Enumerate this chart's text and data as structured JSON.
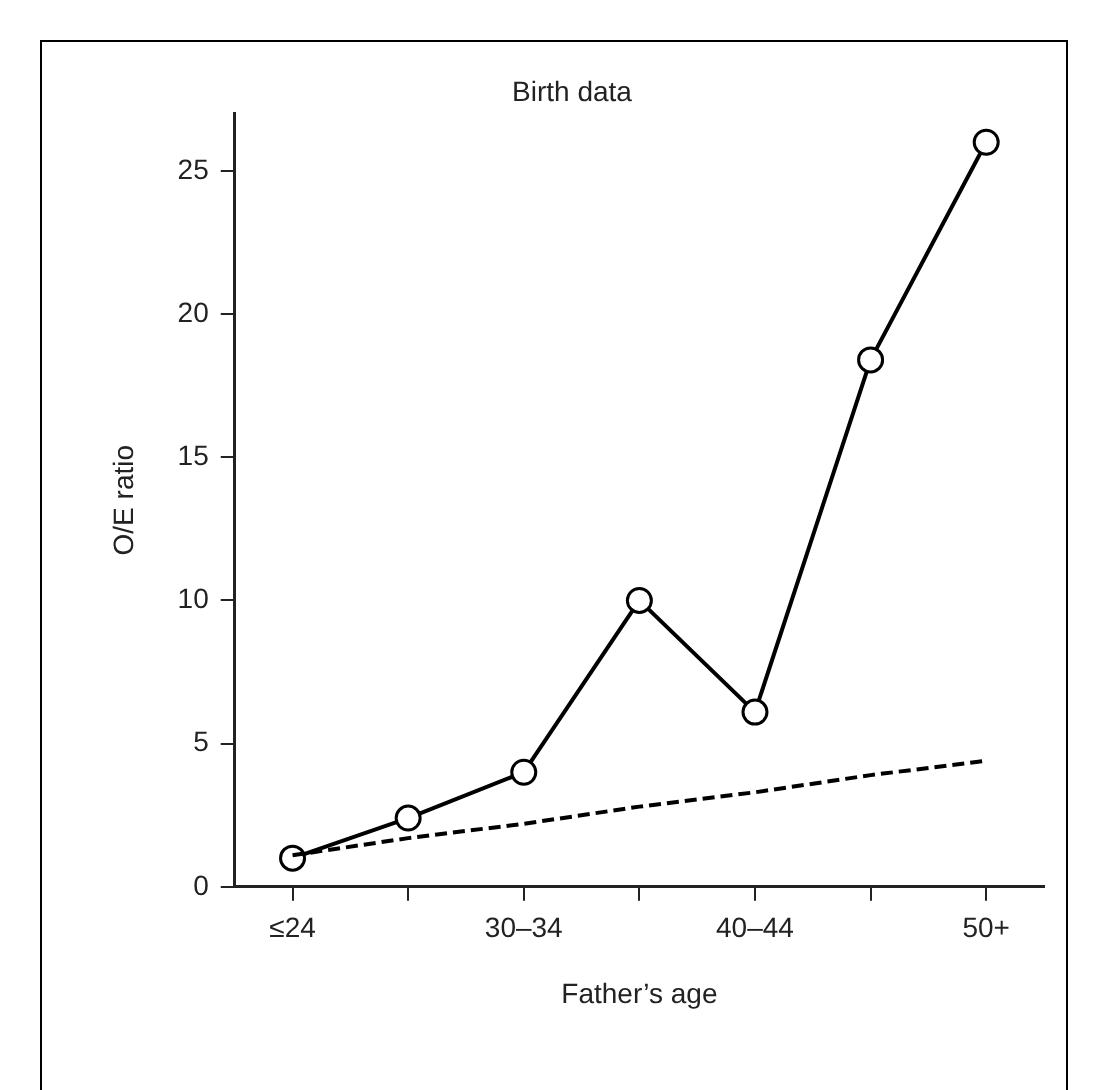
{
  "chart_data": {
    "type": "line",
    "title": "Birth data",
    "xlabel": "Father’s age",
    "ylabel": "O/E ratio",
    "categories": [
      "≤24",
      null,
      "30–34",
      null,
      "40–44",
      null,
      "50+"
    ],
    "series": [
      {
        "color": "#000000",
        "values": [
          1.0,
          2.4,
          4.0,
          10.0,
          6.1,
          18.4,
          26.0
        ],
        "marker": "circle",
        "line_style": "solid"
      },
      {
        "color": "#000000",
        "values": [
          1.1,
          1.7,
          2.2,
          2.8,
          3.3,
          3.9,
          4.4
        ],
        "marker": "none",
        "line_style": "dashed"
      }
    ],
    "ylim": [
      0,
      27
    ],
    "yticks": [
      0,
      5,
      10,
      15,
      20,
      25
    ],
    "grid": false,
    "legend": false
  }
}
